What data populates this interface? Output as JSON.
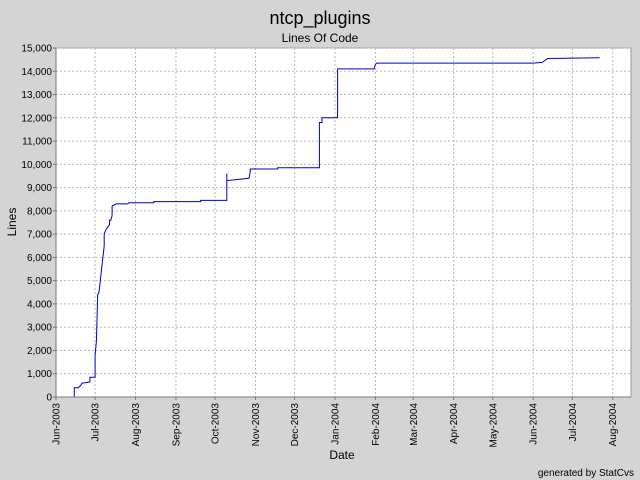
{
  "chart_data": {
    "type": "line",
    "title": "ntcp_plugins",
    "subtitle": "Lines Of Code",
    "xlabel": "Date",
    "ylabel": "Lines",
    "footer": "generated by StatCvs",
    "grid": true,
    "line_color": "#0000cc",
    "x_ticks": [
      "Jun-2003",
      "Jul-2003",
      "Aug-2003",
      "Sep-2003",
      "Oct-2003",
      "Nov-2003",
      "Dec-2003",
      "Jan-2004",
      "Feb-2004",
      "Mar-2004",
      "Apr-2004",
      "May-2004",
      "Jun-2004",
      "Jul-2004",
      "Aug-2004"
    ],
    "xlim": [
      "2003-06-01",
      "2004-08-01"
    ],
    "y_ticks": [
      "0",
      "1,000",
      "2,000",
      "3,000",
      "4,000",
      "5,000",
      "6,000",
      "7,000",
      "8,000",
      "9,000",
      "10,000",
      "11,000",
      "12,000",
      "13,000",
      "14,000",
      "15,000"
    ],
    "ylim": [
      0,
      15000
    ],
    "series": [
      {
        "x": [
          "2003-06-15",
          "2003-06-15",
          "2003-06-18",
          "2003-06-20",
          "2003-06-21",
          "2003-06-22",
          "2003-06-27",
          "2003-06-27",
          "2003-07-01",
          "2003-07-01",
          "2003-07-01",
          "2003-07-02",
          "2003-07-03",
          "2003-07-04",
          "2003-07-06",
          "2003-07-07",
          "2003-07-08",
          "2003-07-08",
          "2003-07-09",
          "2003-07-10",
          "2003-07-12",
          "2003-07-12",
          "2003-07-13",
          "2003-07-14",
          "2003-07-14",
          "2003-07-17",
          "2003-07-20",
          "2003-07-22",
          "2003-07-24",
          "2003-07-26",
          "2003-07-27",
          "2003-08-01",
          "2003-08-15",
          "2003-08-15",
          "2003-09-01",
          "2003-09-20",
          "2003-09-20",
          "2003-10-10",
          "2003-10-10",
          "2003-10-10",
          "2003-10-27",
          "2003-10-28",
          "2003-10-28",
          "2003-11-18",
          "2003-11-18",
          "2003-12-20",
          "2003-12-20",
          "2003-12-22",
          "2003-12-22",
          "2003-12-28",
          "2003-12-28",
          "2004-01-03",
          "2004-01-03",
          "2004-01-31",
          "2004-02-01",
          "2004-02-02",
          "2004-02-06",
          "2004-03-01",
          "2004-05-01",
          "2004-06-01",
          "2004-06-08",
          "2004-06-08",
          "2004-06-12",
          "2004-06-12",
          "2004-07-22"
        ],
        "y": [
          0,
          400,
          400,
          500,
          600,
          600,
          650,
          850,
          850,
          900,
          1800,
          2400,
          4400,
          4500,
          5500,
          6000,
          6500,
          7000,
          7150,
          7250,
          7400,
          7600,
          7600,
          7800,
          8200,
          8300,
          8300,
          8300,
          8300,
          8300,
          8350,
          8350,
          8350,
          8400,
          8400,
          8400,
          8450,
          8450,
          9600,
          9300,
          9400,
          9700,
          9800,
          9800,
          9850,
          9850,
          11800,
          11800,
          12000,
          12000,
          12000,
          12000,
          14100,
          14100,
          14300,
          14350,
          14350,
          14350,
          14350,
          14350,
          14380,
          14380,
          14550,
          14550,
          14580
        ]
      }
    ]
  }
}
